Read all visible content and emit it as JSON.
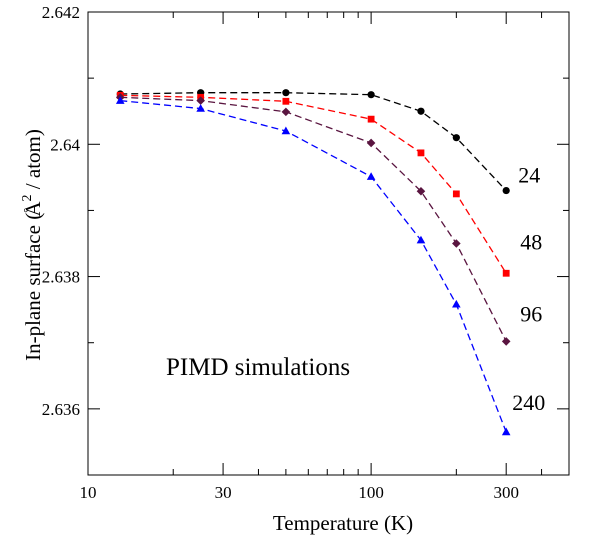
{
  "chart_data": {
    "type": "line",
    "title": "",
    "xlabel": "Temperature  (K)",
    "ylabel_text": "In-plane surface  (",
    "ylabel_unit_base": "A",
    "ylabel_unit_ring": "°",
    "ylabel_unit_exp": "2",
    "ylabel_unit_rest": " / atom)",
    "x_scale": "log",
    "xlim": [
      10,
      500
    ],
    "ylim": [
      2.635,
      2.642
    ],
    "x_ticks": [
      10,
      30,
      100,
      300
    ],
    "x_tick_labels": [
      "10",
      "30",
      "100",
      "300"
    ],
    "x_minor_ticks": [
      20,
      40,
      50,
      60,
      70,
      80,
      90,
      200,
      400,
      500
    ],
    "y_ticks": [
      2.636,
      2.638,
      2.64,
      2.642
    ],
    "y_tick_labels": [
      "2.636",
      "2.638",
      "2.64",
      "2.642"
    ],
    "y_minor_ticks": [
      2.635,
      2.637,
      2.639,
      2.641
    ],
    "grid": false,
    "legend": "none",
    "annotation": "PIMD  simulations",
    "x": [
      13,
      25,
      50,
      100,
      150,
      200,
      300
    ],
    "series": [
      {
        "label": "24",
        "color": "#000000",
        "marker": "circle",
        "values": [
          2.64076,
          2.64078,
          2.64078,
          2.64075,
          2.6405,
          2.6401,
          2.6393
        ]
      },
      {
        "label": "48",
        "color": "#ff0000",
        "marker": "square",
        "values": [
          2.64074,
          2.64071,
          2.64065,
          2.64038,
          2.63987,
          2.63925,
          2.63805
        ]
      },
      {
        "label": "96",
        "color": "#5a1540",
        "marker": "diamond",
        "values": [
          2.64071,
          2.64066,
          2.64049,
          2.64002,
          2.63929,
          2.6385,
          2.63702
        ]
      },
      {
        "label": "240",
        "color": "#0000ff",
        "marker": "triangle",
        "values": [
          2.64066,
          2.64054,
          2.6402,
          2.63951,
          2.63855,
          2.63758,
          2.63565
        ]
      }
    ]
  }
}
